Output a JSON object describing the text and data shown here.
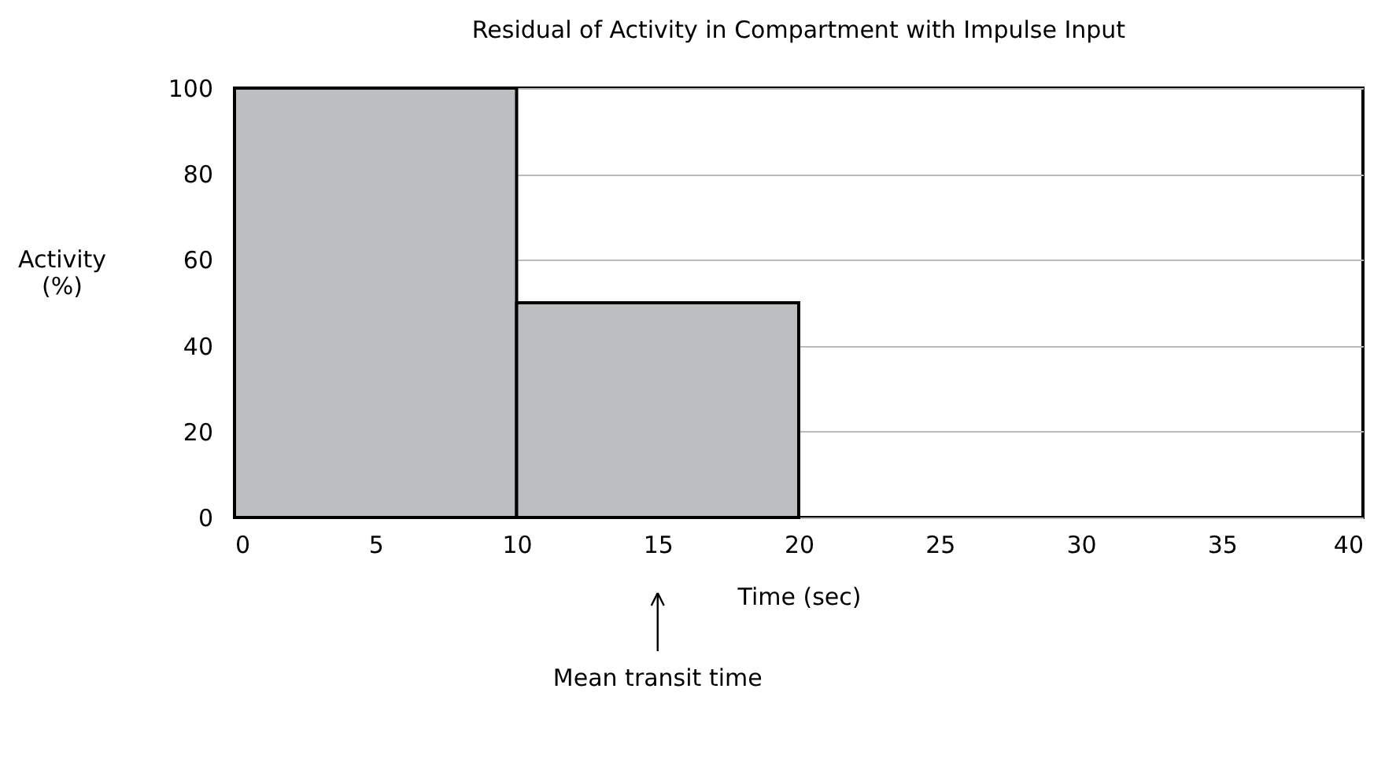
{
  "chart_data": {
    "type": "histogram",
    "title": "Residual of Activity in Compartment with Impulse Input",
    "xlabel": "Time (sec)",
    "ylabel": "Activity (%)",
    "bins": [
      0,
      10,
      20
    ],
    "values": [
      100,
      50
    ],
    "color": "#bcbec0",
    "xlim": [
      0,
      40
    ],
    "xticks": [
      0,
      5,
      10,
      15,
      20,
      25,
      30,
      35,
      40
    ],
    "ylim": [
      0,
      100
    ],
    "yticks": [
      0,
      20,
      40,
      60,
      80,
      100
    ],
    "grid": "y",
    "annotations": [
      {
        "text": "Mean transit time",
        "x": 15
      }
    ]
  }
}
